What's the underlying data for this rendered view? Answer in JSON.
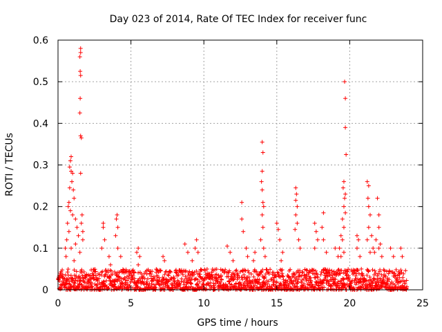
{
  "chart_data": {
    "type": "scatter",
    "title": "Day 023 of 2014, Rate Of TEC Index for receiver func",
    "xlabel": "GPS time / hours",
    "ylabel": "ROTI / TECUs",
    "xlim": [
      0,
      25
    ],
    "ylim": [
      0,
      0.6
    ],
    "xticks": [
      0,
      5,
      10,
      15,
      20,
      25
    ],
    "yticks": [
      0,
      0.1,
      0.2,
      0.3,
      0.4,
      0.5,
      0.6
    ],
    "xtick_labels": [
      "0",
      "5",
      "10",
      "15",
      "20",
      "25"
    ],
    "ytick_labels": [
      "0",
      "0.1",
      "0.2",
      "0.3",
      "0.4",
      "0.5",
      "0.6"
    ],
    "grid": true,
    "marker": "+",
    "series_color": "#ff0000",
    "series": [
      {
        "name": "ROTI",
        "points": [
          [
            1.55,
            0.58
          ],
          [
            1.55,
            0.57
          ],
          [
            1.5,
            0.56
          ],
          [
            1.52,
            0.525
          ],
          [
            1.55,
            0.515
          ],
          [
            1.52,
            0.46
          ],
          [
            1.5,
            0.425
          ],
          [
            1.55,
            0.37
          ],
          [
            1.6,
            0.365
          ],
          [
            0.9,
            0.32
          ],
          [
            0.85,
            0.31
          ],
          [
            0.8,
            0.295
          ],
          [
            0.9,
            0.285
          ],
          [
            1.0,
            0.28
          ],
          [
            0.95,
            0.26
          ],
          [
            0.8,
            0.245
          ],
          [
            1.05,
            0.24
          ],
          [
            1.1,
            0.22
          ],
          [
            0.75,
            0.21
          ],
          [
            0.7,
            0.2
          ],
          [
            0.85,
            0.19
          ],
          [
            1.0,
            0.18
          ],
          [
            1.2,
            0.17
          ],
          [
            0.65,
            0.16
          ],
          [
            1.3,
            0.15
          ],
          [
            0.75,
            0.14
          ],
          [
            1.4,
            0.13
          ],
          [
            0.6,
            0.12
          ],
          [
            1.2,
            0.11
          ],
          [
            0.9,
            0.1
          ],
          [
            1.5,
            0.09
          ],
          [
            0.55,
            0.08
          ],
          [
            1.6,
            0.16
          ],
          [
            1.7,
            0.14
          ],
          [
            1.55,
            0.28
          ],
          [
            1.65,
            0.18
          ],
          [
            1.7,
            0.12
          ],
          [
            0.5,
            0.1
          ],
          [
            1.1,
            0.07
          ],
          [
            3.1,
            0.16
          ],
          [
            3.1,
            0.15
          ],
          [
            3.2,
            0.12
          ],
          [
            3.0,
            0.1
          ],
          [
            3.5,
            0.08
          ],
          [
            4.05,
            0.18
          ],
          [
            4.0,
            0.17
          ],
          [
            4.1,
            0.15
          ],
          [
            3.95,
            0.13
          ],
          [
            4.1,
            0.1
          ],
          [
            4.3,
            0.08
          ],
          [
            3.6,
            0.06
          ],
          [
            5.5,
            0.1
          ],
          [
            5.4,
            0.09
          ],
          [
            5.6,
            0.08
          ],
          [
            5.5,
            0.06
          ],
          [
            7.2,
            0.08
          ],
          [
            7.3,
            0.07
          ],
          [
            8.7,
            0.11
          ],
          [
            8.9,
            0.09
          ],
          [
            9.2,
            0.07
          ],
          [
            9.5,
            0.12
          ],
          [
            9.4,
            0.1
          ],
          [
            9.6,
            0.09
          ],
          [
            11.6,
            0.105
          ],
          [
            11.8,
            0.09
          ],
          [
            12.0,
            0.07
          ],
          [
            12.6,
            0.21
          ],
          [
            12.6,
            0.17
          ],
          [
            12.7,
            0.14
          ],
          [
            12.9,
            0.1
          ],
          [
            13.0,
            0.08
          ],
          [
            13.5,
            0.09
          ],
          [
            13.4,
            0.07
          ],
          [
            14.0,
            0.355
          ],
          [
            14.05,
            0.33
          ],
          [
            14.0,
            0.285
          ],
          [
            13.95,
            0.26
          ],
          [
            14.0,
            0.24
          ],
          [
            14.05,
            0.21
          ],
          [
            14.1,
            0.2
          ],
          [
            14.0,
            0.18
          ],
          [
            14.05,
            0.15
          ],
          [
            13.9,
            0.12
          ],
          [
            14.1,
            0.1
          ],
          [
            14.2,
            0.08
          ],
          [
            15.0,
            0.16
          ],
          [
            15.1,
            0.145
          ],
          [
            15.2,
            0.12
          ],
          [
            15.4,
            0.09
          ],
          [
            15.3,
            0.07
          ],
          [
            16.3,
            0.245
          ],
          [
            16.35,
            0.23
          ],
          [
            16.3,
            0.215
          ],
          [
            16.4,
            0.2
          ],
          [
            16.3,
            0.18
          ],
          [
            16.4,
            0.16
          ],
          [
            16.25,
            0.145
          ],
          [
            16.5,
            0.12
          ],
          [
            16.6,
            0.1
          ],
          [
            17.6,
            0.16
          ],
          [
            17.7,
            0.14
          ],
          [
            17.8,
            0.12
          ],
          [
            17.6,
            0.1
          ],
          [
            18.2,
            0.185
          ],
          [
            18.1,
            0.15
          ],
          [
            18.2,
            0.12
          ],
          [
            18.4,
            0.09
          ],
          [
            19.0,
            0.1
          ],
          [
            19.2,
            0.08
          ],
          [
            19.65,
            0.5
          ],
          [
            19.7,
            0.46
          ],
          [
            19.7,
            0.39
          ],
          [
            19.75,
            0.325
          ],
          [
            19.6,
            0.26
          ],
          [
            19.55,
            0.245
          ],
          [
            19.7,
            0.23
          ],
          [
            19.65,
            0.22
          ],
          [
            19.6,
            0.2
          ],
          [
            19.7,
            0.185
          ],
          [
            19.5,
            0.17
          ],
          [
            19.6,
            0.15
          ],
          [
            19.4,
            0.13
          ],
          [
            19.5,
            0.12
          ],
          [
            19.3,
            0.1
          ],
          [
            19.6,
            0.09
          ],
          [
            19.4,
            0.08
          ],
          [
            20.5,
            0.13
          ],
          [
            20.6,
            0.12
          ],
          [
            20.5,
            0.1
          ],
          [
            20.7,
            0.08
          ],
          [
            21.2,
            0.26
          ],
          [
            21.3,
            0.25
          ],
          [
            21.25,
            0.22
          ],
          [
            21.3,
            0.2
          ],
          [
            21.4,
            0.18
          ],
          [
            21.3,
            0.15
          ],
          [
            21.5,
            0.13
          ],
          [
            21.2,
            0.12
          ],
          [
            21.6,
            0.1
          ],
          [
            21.4,
            0.09
          ],
          [
            21.9,
            0.22
          ],
          [
            22.0,
            0.18
          ],
          [
            22.0,
            0.15
          ],
          [
            21.8,
            0.12
          ],
          [
            22.1,
            0.11
          ],
          [
            22.0,
            0.1
          ],
          [
            21.7,
            0.09
          ],
          [
            22.2,
            0.08
          ],
          [
            22.8,
            0.1
          ],
          [
            23.0,
            0.08
          ],
          [
            23.5,
            0.1
          ],
          [
            23.6,
            0.08
          ]
        ]
      }
    ],
    "baseline_band": {
      "x_range": [
        0,
        23.9
      ],
      "typical_max": 0.05,
      "description_values": [
        0.0,
        0.01,
        0.02,
        0.03,
        0.04,
        0.05
      ]
    }
  }
}
